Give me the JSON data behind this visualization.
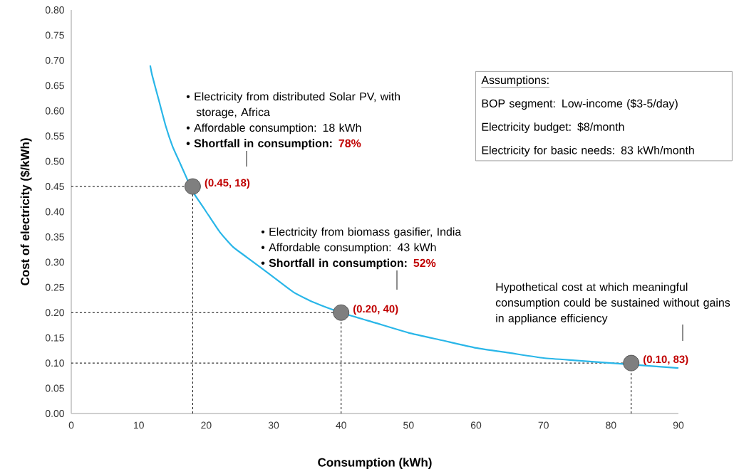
{
  "chart_data": {
    "type": "line",
    "xlabel": "Consumption (kWh)",
    "ylabel": "Cost of electricity ($/kWh)",
    "xlim": [
      0,
      90
    ],
    "ylim": [
      0,
      0.8
    ],
    "xticks": [
      0,
      10,
      20,
      30,
      40,
      50,
      60,
      70,
      80,
      90
    ],
    "yticks": [
      {
        "value": 0,
        "label": "0.00"
      },
      {
        "value": 0.05,
        "label": "0.05"
      },
      {
        "value": 0.1,
        "label": "0.10"
      },
      {
        "value": 0.15,
        "label": "0.15"
      },
      {
        "value": 0.2,
        "label": "0.20"
      },
      {
        "value": 0.25,
        "label": "0.25"
      },
      {
        "value": 0.3,
        "label": "0.30"
      },
      {
        "value": 0.35,
        "label": "0.35"
      },
      {
        "value": 0.4,
        "label": "0.40"
      },
      {
        "value": 0.45,
        "label": "0.45"
      },
      {
        "value": 0.5,
        "label": "0.50"
      },
      {
        "value": 0.55,
        "label": "0.55"
      },
      {
        "value": 0.6,
        "label": "0.60"
      },
      {
        "value": 0.65,
        "label": "0.65"
      },
      {
        "value": 0.7,
        "label": "0.70"
      },
      {
        "value": 0.75,
        "label": "0.75"
      },
      {
        "value": 0.8,
        "label": "0.80"
      }
    ],
    "series": [
      {
        "color": "#29b6e8",
        "x": [
          11.7,
          12,
          13,
          14,
          15,
          16,
          17,
          18,
          19,
          20,
          22,
          24,
          26,
          28,
          30,
          33,
          36,
          40,
          45,
          50,
          55,
          60,
          65,
          70,
          75,
          80,
          85,
          90
        ],
        "values": [
          0.69,
          0.67,
          0.62,
          0.57,
          0.53,
          0.5,
          0.47,
          0.44,
          0.42,
          0.4,
          0.36,
          0.33,
          0.31,
          0.29,
          0.27,
          0.24,
          0.22,
          0.2,
          0.18,
          0.16,
          0.145,
          0.13,
          0.12,
          0.11,
          0.105,
          0.1,
          0.095,
          0.09
        ]
      },
      {
        "type": "scatter",
        "color": "#7f7f7f",
        "marker": "circle",
        "x": [
          18,
          40,
          83
        ],
        "values": [
          0.45,
          0.2,
          0.1
        ],
        "value_labels": [
          "(0.45, 18)",
          "(0.20, 40)",
          "(0.10, 83)"
        ]
      }
    ],
    "ref_lines": [
      {
        "axis": "x",
        "value": 18,
        "line_style": "dashed"
      },
      {
        "axis": "x",
        "value": 40,
        "line_style": "dashed"
      },
      {
        "axis": "x",
        "value": 83,
        "line_style": "dashed"
      },
      {
        "axis": "y",
        "value": 0.45,
        "line_style": "dashed"
      },
      {
        "axis": "y",
        "value": 0.2,
        "line_style": "dashed"
      },
      {
        "axis": "y",
        "value": 0.1,
        "line_style": "dashed"
      }
    ],
    "annotations": [
      "• Electricity from distributed Solar PV, with storage, Africa",
      "• Affordable consumption: 18 kWh",
      "• Shortfall in consumption:",
      "78%",
      "• Electricity from biomass gasifier, India",
      "• Affordable consumption: 43 kWh",
      "• Shortfall in consumption:",
      "52%",
      "Hypothetical cost at which meaningful consumption could be sustained without gains in appliance efficiency",
      "Assumptions:",
      "BOP segment: Low-income ($3-5/day)",
      "Electricity budget: $8/month",
      "Electricity for basic needs: 83 kWh/month"
    ]
  }
}
